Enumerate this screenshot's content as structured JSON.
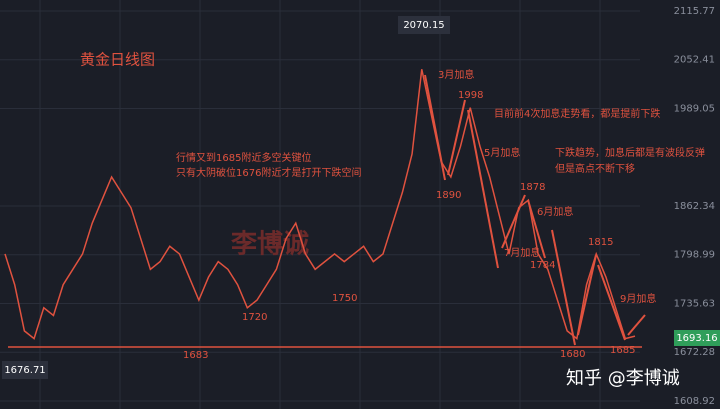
{
  "chart_data": {
    "type": "line",
    "title": "黄金日线图",
    "values": [
      1800,
      1760,
      1700,
      1690,
      1730,
      1720,
      1760,
      1780,
      1800,
      1840,
      1870,
      1900,
      1880,
      1860,
      1820,
      1780,
      1790,
      1810,
      1800,
      1770,
      1740,
      1770,
      1790,
      1780,
      1760,
      1730,
      1740,
      1760,
      1780,
      1820,
      1840,
      1800,
      1780,
      1790,
      1800,
      1790,
      1800,
      1810,
      1790,
      1800,
      1840,
      1880,
      1930,
      2040,
      1980,
      1920,
      1900,
      1940,
      1990,
      1940,
      1900,
      1850,
      1800,
      1860,
      1870,
      1800,
      1780,
      1740,
      1700,
      1690,
      1760,
      1800,
      1770,
      1730,
      1690,
      1693.16
    ],
    "color": "#e0523f",
    "ylim": [
      1598.5,
      2130
    ],
    "yticks": [
      2115.77,
      2052.41,
      1989.05,
      1862.34,
      1798.99,
      1735.63,
      1672.28,
      1608.92
    ],
    "grid": true,
    "last_price": "1693.16",
    "high_label": "2070.15",
    "low_label": "1676.71",
    "annotations": [
      "行情又到1685附近多空关键位",
      "只有大阴破位1676附近才是打开下跌空间",
      "3月加息",
      "1998",
      "目前前4次加息走势看，都是提前下跌",
      "5月加息",
      "1890",
      "下跌趋势，加息后都是有波段反弹",
      "但是高点不断下移",
      "1878",
      "6月加息",
      "7月加息",
      "1784",
      "1815",
      "9月加息",
      "1680",
      "1685",
      "1683",
      "1720",
      "1750"
    ],
    "watermark": "知乎 @李博诚",
    "center_mark": "李博诚"
  }
}
